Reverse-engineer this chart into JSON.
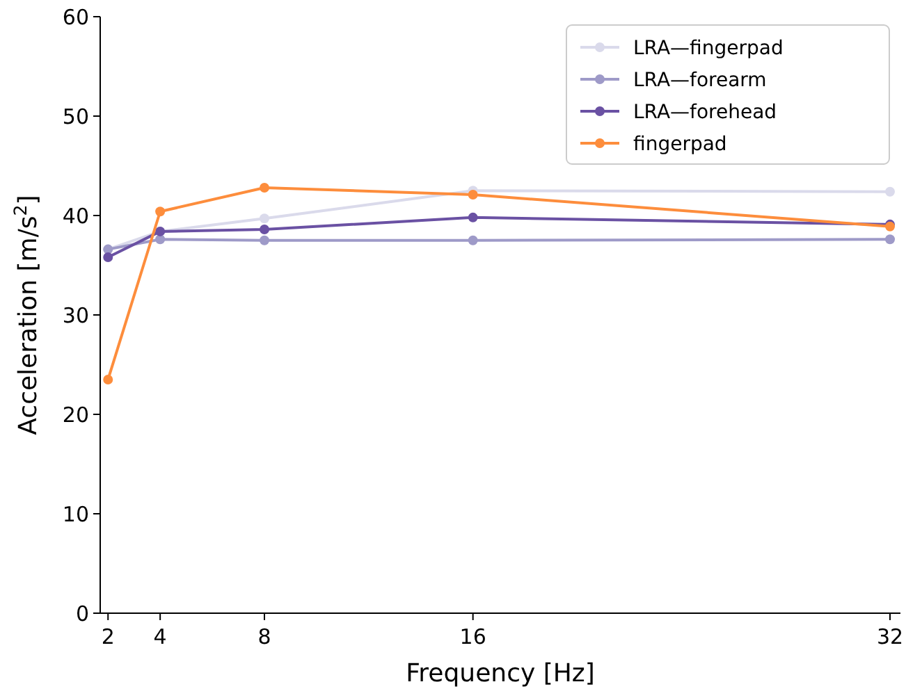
{
  "chart_data": {
    "type": "line",
    "xlabel": "Frequency [Hz]",
    "ylabel": "Acceleration [m/s$^{2}$]",
    "x": [
      2,
      4,
      8,
      16,
      32
    ],
    "xlim": [
      1.7,
      32.4
    ],
    "xticks": [
      2,
      4,
      8,
      16,
      32
    ],
    "ylim": [
      0,
      60
    ],
    "yticks": [
      0,
      10,
      20,
      30,
      40,
      50,
      60
    ],
    "grid": false,
    "legend": "top right",
    "marker": "circle",
    "line_style": "solid",
    "series": [
      {
        "name": "LRA—fingerpad",
        "color": "#dadaeb",
        "values": [
          36.6,
          38.4,
          39.7,
          42.5,
          42.4
        ]
      },
      {
        "name": "LRA—forearm",
        "color": "#9e9ac8",
        "values": [
          36.6,
          37.6,
          37.5,
          37.5,
          37.6
        ]
      },
      {
        "name": "LRA—forehead",
        "color": "#6a51a3",
        "values": [
          35.8,
          38.4,
          38.6,
          39.8,
          39.1
        ]
      },
      {
        "name": "fingerpad",
        "color": "#fd8d3c",
        "values": [
          23.5,
          40.4,
          42.8,
          42.1,
          38.9
        ]
      }
    ]
  }
}
